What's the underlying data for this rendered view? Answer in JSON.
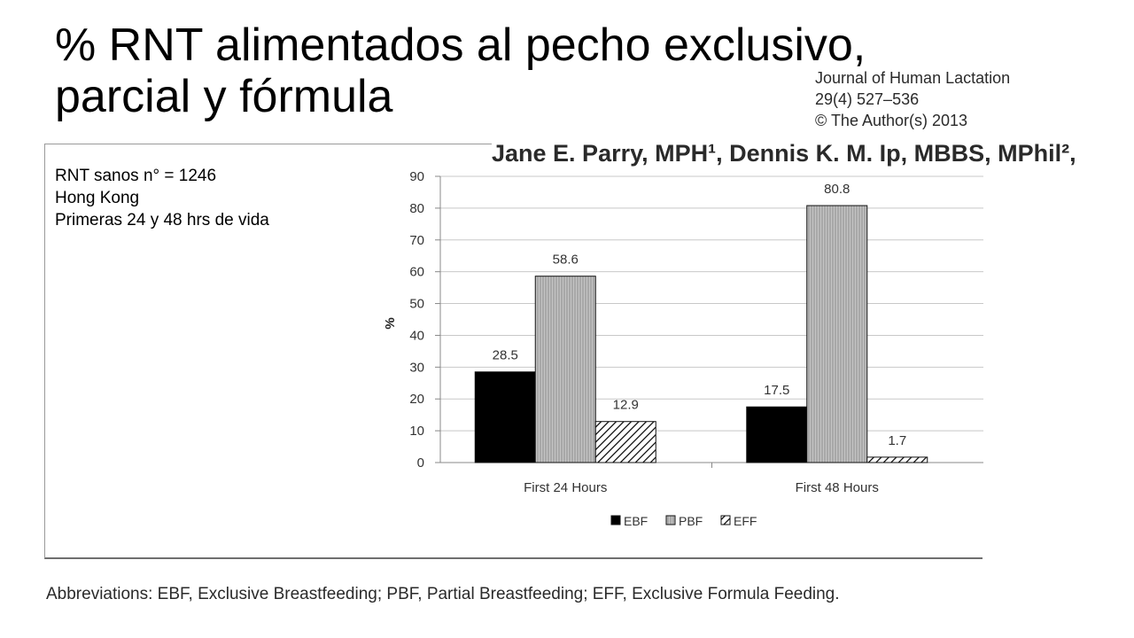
{
  "slide": {
    "title_line1": "% RNT alimentados al pecho exclusivo,",
    "title_line2": "parcial y fórmula"
  },
  "study_info": {
    "line1": "RNT sanos n° = 1246",
    "line2": "Hong Kong",
    "line3": "Primeras 24 y  48 hrs de vida"
  },
  "journal_ref": {
    "journal": "Journal of Human Lactation",
    "volume": "29(4) 527–536",
    "copyright": "© The Author(s) 2013"
  },
  "authors": "Jane E. Parry, MPH¹, Dennis K. M. Ip, MBBS, MPhil²,",
  "abbreviations": "Abbreviations: EBF, Exclusive Breastfeeding; PBF, Partial Breastfeeding; EFF, Exclusive Formula Feeding.",
  "chart_data": {
    "type": "bar",
    "categories": [
      "First 24 Hours",
      "First 48 Hours"
    ],
    "series": [
      {
        "name": "EBF",
        "values": [
          28.5,
          17.5
        ],
        "color": "#000000",
        "pattern": "solid"
      },
      {
        "name": "PBF",
        "values": [
          58.6,
          80.8
        ],
        "color": "#b4b4b4",
        "pattern": "vertical-lines"
      },
      {
        "name": "EFF",
        "values": [
          12.9,
          1.7
        ],
        "color": "#ffffff",
        "pattern": "diagonal-hatch"
      }
    ],
    "data_labels": [
      [
        "28.5",
        "17.5"
      ],
      [
        "58.6",
        "80.8"
      ],
      [
        "12.9",
        "1.7"
      ]
    ],
    "ylabel": "%",
    "xlabel": "",
    "ylim": [
      0,
      90
    ],
    "yticks": [
      0,
      10,
      20,
      30,
      40,
      50,
      60,
      70,
      80,
      90
    ],
    "grid": true,
    "legend": "bottom"
  }
}
